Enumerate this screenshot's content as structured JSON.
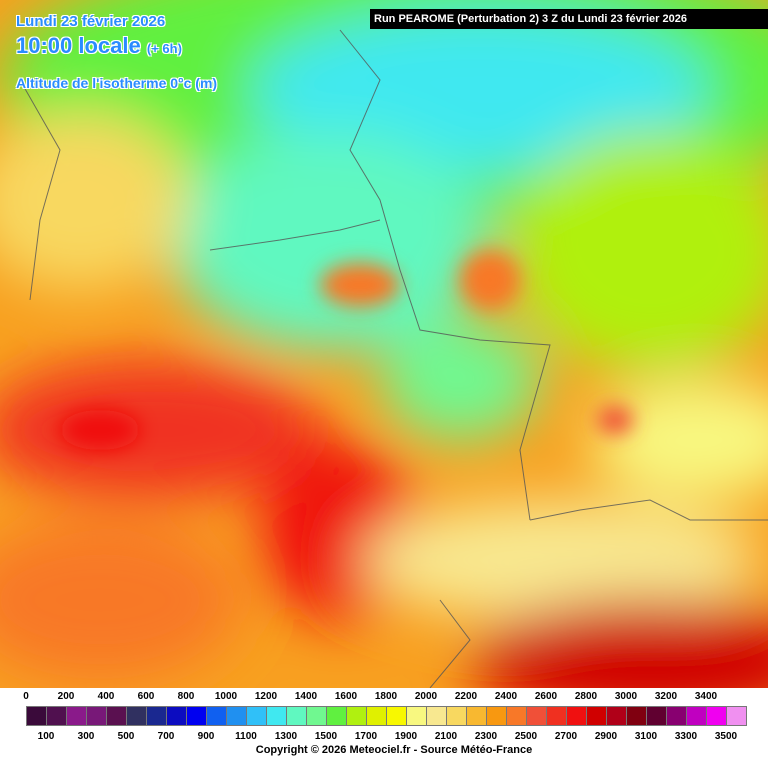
{
  "header": {
    "date": "Lundi 23 février 2026",
    "time": "10:00 locale",
    "offset": "(+ 6h)",
    "variable": "Altitude de l'isotherme 0°c (m)"
  },
  "run_info": "Run PEAROME (Perturbation 2) 3 Z du Lundi 23 février 2026",
  "legend": {
    "ticks_top": [
      0,
      200,
      400,
      600,
      800,
      1000,
      1200,
      1400,
      1600,
      1800,
      2000,
      2200,
      2400,
      2600,
      2800,
      3000,
      3200,
      3400
    ],
    "ticks_bottom": [
      100,
      300,
      500,
      700,
      900,
      1100,
      1300,
      1500,
      1700,
      1900,
      2100,
      2300,
      2500,
      2700,
      2900,
      3100,
      3300,
      3500
    ],
    "colors": [
      "#3a0a3a",
      "#50104f",
      "#8a1a8a",
      "#781878",
      "#5a1050",
      "#303060",
      "#1a2890",
      "#0c0cc0",
      "#0000f0",
      "#1060f0",
      "#2090f0",
      "#30c0f8",
      "#40e8f0",
      "#60f8c0",
      "#70f890",
      "#60f040",
      "#b0f010",
      "#e0f000",
      "#f8f800",
      "#f8f880",
      "#f8e890",
      "#f8d860",
      "#f8b830",
      "#f89810",
      "#f87828",
      "#f05038",
      "#f03020",
      "#f01010",
      "#d00000",
      "#b00018",
      "#800010",
      "#600030",
      "#880070",
      "#c000c0",
      "#f000f0",
      "#f090f0"
    ]
  },
  "copyright": "Copyright © 2026 Meteociel.fr - Source Météo-France"
}
